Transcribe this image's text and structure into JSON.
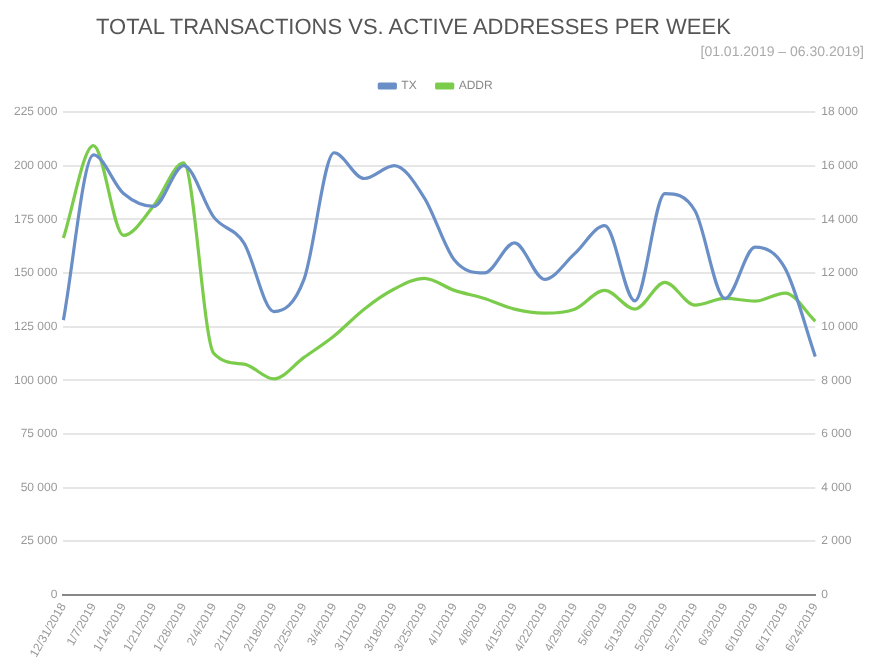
{
  "chart_data": {
    "type": "line",
    "title": "TOTAL TRANSACTIONS VS. ACTIVE ADDRESSES PER WEEK",
    "subtitle": "[01.01.2019 – 06.30.2019]",
    "categories": [
      "12/31/2018",
      "1/7/2019",
      "1/14/2019",
      "1/21/2019",
      "1/28/2019",
      "2/4/2019",
      "2/11/2019",
      "2/18/2019",
      "2/25/2019",
      "3/4/2019",
      "3/11/2019",
      "3/18/2019",
      "3/25/2019",
      "4/1/2019",
      "4/8/2019",
      "4/15/2019",
      "4/22/2019",
      "4/29/2019",
      "5/6/2019",
      "5/13/2019",
      "5/20/2019",
      "5/27/2019",
      "6/3/2019",
      "6/10/2019",
      "6/17/2019",
      "6/24/2019"
    ],
    "series": [
      {
        "name": "TX",
        "color": "#6a8fc7",
        "values": [
          128000,
          205000,
          187000,
          181000,
          200000,
          176000,
          164000,
          132000,
          147000,
          206000,
          194000,
          200000,
          185000,
          156000,
          150000,
          164000,
          147000,
          159000,
          172000,
          137000,
          187000,
          179000,
          138000,
          162000,
          152000,
          111000
        ]
      },
      {
        "name": "ADDR",
        "color": "#7ccc4c",
        "axis": "y2",
        "values": [
          13300,
          16750,
          13400,
          14500,
          16100,
          9000,
          8600,
          8050,
          8850,
          9650,
          10650,
          11400,
          11800,
          11350,
          11050,
          10650,
          10500,
          10650,
          11350,
          10650,
          11650,
          10800,
          11050,
          10950,
          11250,
          10200
        ]
      }
    ],
    "ylim": [
      0,
      225000
    ],
    "yticks": [
      {
        "value": 0,
        "label": "0"
      },
      {
        "value": 25000,
        "label": "25 000"
      },
      {
        "value": 50000,
        "label": "50 000"
      },
      {
        "value": 75000,
        "label": "75 000"
      },
      {
        "value": 100000,
        "label": "100 000"
      },
      {
        "value": 125000,
        "label": "125 000"
      },
      {
        "value": 150000,
        "label": "150 000"
      },
      {
        "value": 175000,
        "label": "175 000"
      },
      {
        "value": 200000,
        "label": "200 000"
      },
      {
        "value": 225000,
        "label": "225 000"
      }
    ],
    "y2lim": [
      0,
      18000
    ],
    "y2ticks": [
      {
        "value": 0,
        "label": "0"
      },
      {
        "value": 2000,
        "label": "2 000"
      },
      {
        "value": 4000,
        "label": "4 000"
      },
      {
        "value": 6000,
        "label": "6 000"
      },
      {
        "value": 8000,
        "label": "8 000"
      },
      {
        "value": 10000,
        "label": "10 000"
      },
      {
        "value": 12000,
        "label": "12 000"
      },
      {
        "value": 14000,
        "label": "14 000"
      },
      {
        "value": 16000,
        "label": "16 000"
      },
      {
        "value": 18000,
        "label": "18 000"
      }
    ],
    "grid": "y",
    "legend": "top",
    "marker": "none",
    "line_style": "solid"
  }
}
